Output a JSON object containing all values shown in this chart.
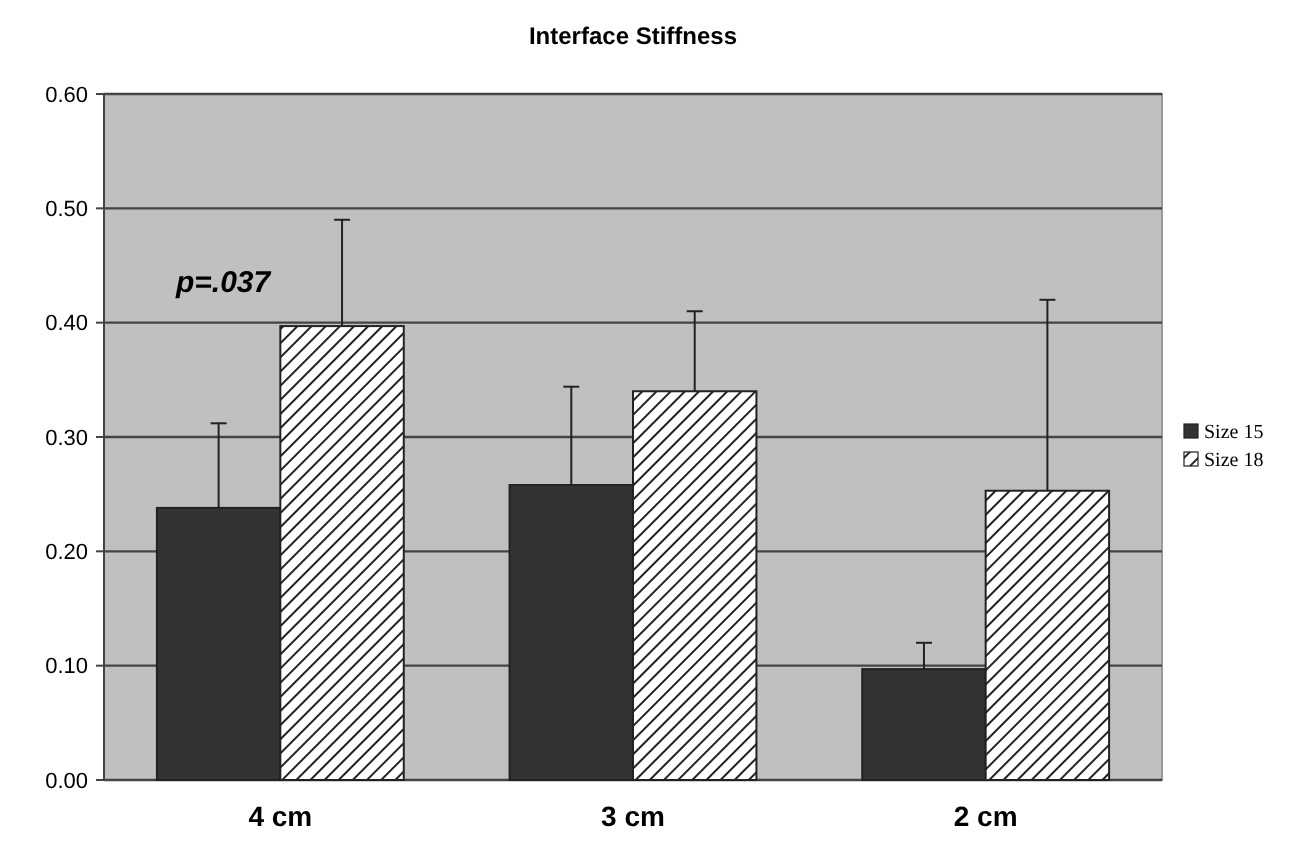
{
  "chart_data": {
    "type": "bar",
    "title": "Interface Stiffness",
    "categories": [
      "4 cm",
      "3 cm",
      "2 cm"
    ],
    "series": [
      {
        "name": "Size 15",
        "color": "#333333",
        "values": [
          0.238,
          0.258,
          0.097
        ],
        "errors": [
          [
            0.238,
            0.312
          ],
          [
            0.258,
            0.344
          ],
          [
            0.097,
            0.12
          ]
        ]
      },
      {
        "name": "Size 18",
        "color": "#222222",
        "values": [
          0.397,
          0.34,
          0.253
        ],
        "errors": [
          [
            0.397,
            0.49
          ],
          [
            0.34,
            0.41
          ],
          [
            0.253,
            0.42
          ]
        ]
      }
    ],
    "ylim": [
      0,
      0.6
    ],
    "yticks": [
      {
        "value": 0,
        "label": "0.00"
      },
      {
        "value": 0.1,
        "label": "0.10"
      },
      {
        "value": 0.2,
        "label": "0.20"
      },
      {
        "value": 0.3,
        "label": "0.30"
      },
      {
        "value": 0.4,
        "label": "0.40"
      },
      {
        "value": 0.5,
        "label": "0.50"
      },
      {
        "value": 0.6,
        "label": "0.60"
      }
    ],
    "grid": "y",
    "legend": "right",
    "annotations": [
      "p=.037"
    ]
  }
}
